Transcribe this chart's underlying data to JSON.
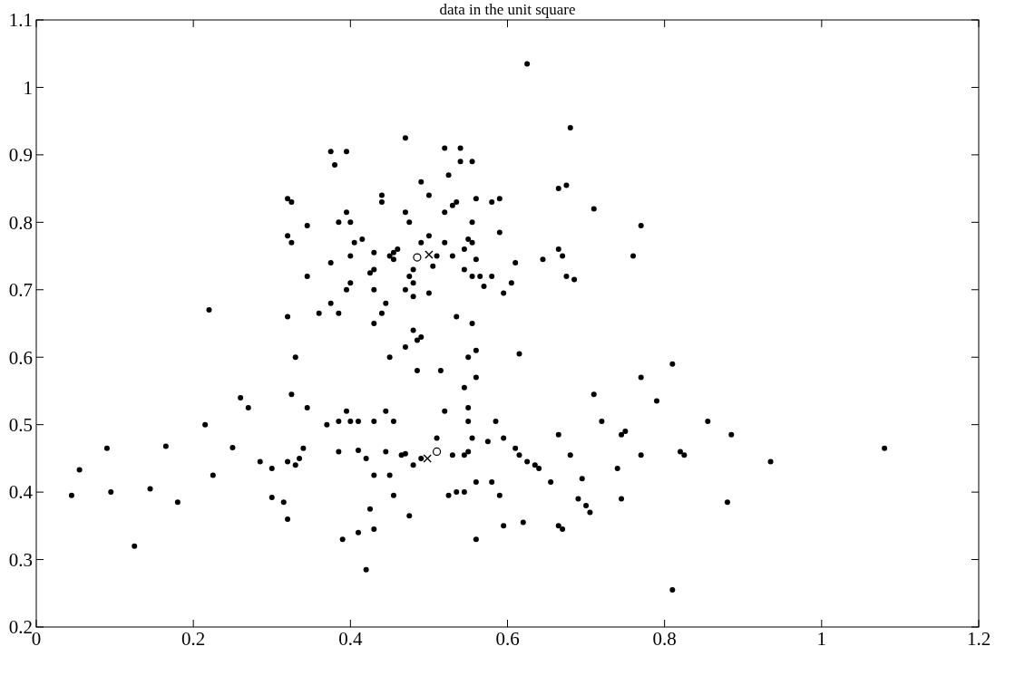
{
  "chart_data": {
    "type": "scatter",
    "title": "data in the unit square",
    "xlim": [
      0,
      1.2
    ],
    "ylim": [
      0.2,
      1.1
    ],
    "xticks": [
      0,
      0.2,
      0.4,
      0.6,
      0.8,
      1,
      1.2
    ],
    "yticks": [
      0.2,
      0.3,
      0.4,
      0.5,
      0.6,
      0.7,
      0.8,
      0.9,
      1,
      1.1
    ],
    "grid": false,
    "series": [
      {
        "color": "#000000",
        "marker": "circle",
        "x": [
          0.625,
          0.68,
          0.47,
          0.52,
          0.54,
          0.375,
          0.395,
          0.38,
          0.54,
          0.555,
          0.49,
          0.525,
          0.665,
          0.675,
          0.32,
          0.325,
          0.44,
          0.44,
          0.5,
          0.535,
          0.53,
          0.56,
          0.58,
          0.59,
          0.71,
          0.395,
          0.47,
          0.52,
          0.385,
          0.4,
          0.475,
          0.555,
          0.345,
          0.77,
          0.32,
          0.325,
          0.405,
          0.415,
          0.5,
          0.49,
          0.52,
          0.55,
          0.555,
          0.59,
          0.545,
          0.375,
          0.4,
          0.43,
          0.45,
          0.455,
          0.46,
          0.455,
          0.51,
          0.505,
          0.53,
          0.56,
          0.61,
          0.665,
          0.67,
          0.645,
          0.76,
          0.345,
          0.425,
          0.43,
          0.48,
          0.475,
          0.48,
          0.545,
          0.555,
          0.565,
          0.58,
          0.57,
          0.605,
          0.675,
          0.685,
          0.395,
          0.4,
          0.375,
          0.43,
          0.445,
          0.47,
          0.48,
          0.5,
          0.595,
          0.36,
          0.32,
          0.385,
          0.43,
          0.44,
          0.535,
          0.555,
          0.22,
          0.33,
          0.47,
          0.48,
          0.485,
          0.49,
          0.45,
          0.55,
          0.56,
          0.615,
          0.485,
          0.515,
          0.56,
          0.545,
          0.26,
          0.325,
          0.27,
          0.215,
          0.37,
          0.385,
          0.395,
          0.4,
          0.41,
          0.43,
          0.445,
          0.455,
          0.345,
          0.52,
          0.55,
          0.55,
          0.585,
          0.71,
          0.81,
          0.77,
          0.79,
          0.72,
          0.855,
          0.885,
          0.745,
          0.75,
          0.665,
          0.575,
          0.555,
          0.595,
          0.51,
          0.09,
          0.165,
          0.055,
          0.25,
          0.34,
          0.385,
          0.41,
          0.42,
          0.47,
          0.465,
          0.49,
          0.53,
          0.545,
          0.55,
          0.61,
          0.615,
          0.625,
          0.635,
          0.64,
          0.68,
          0.77,
          0.82,
          0.825,
          0.935,
          1.08,
          0.045,
          0.095,
          0.145,
          0.18,
          0.125,
          0.225,
          0.285,
          0.32,
          0.335,
          0.3,
          0.33,
          0.43,
          0.3,
          0.315,
          0.32,
          0.39,
          0.41,
          0.43,
          0.42,
          0.425,
          0.455,
          0.475,
          0.48,
          0.525,
          0.535,
          0.545,
          0.56,
          0.56,
          0.58,
          0.59,
          0.595,
          0.62,
          0.655,
          0.665,
          0.67,
          0.695,
          0.69,
          0.7,
          0.705,
          0.74,
          0.745,
          0.81,
          0.88,
          0.445,
          0.45
        ],
        "values": [
          1.035,
          0.94,
          0.925,
          0.91,
          0.91,
          0.905,
          0.905,
          0.885,
          0.89,
          0.89,
          0.86,
          0.87,
          0.85,
          0.855,
          0.835,
          0.83,
          0.84,
          0.83,
          0.84,
          0.83,
          0.825,
          0.835,
          0.83,
          0.835,
          0.82,
          0.815,
          0.815,
          0.815,
          0.8,
          0.8,
          0.8,
          0.8,
          0.795,
          0.795,
          0.78,
          0.77,
          0.77,
          0.775,
          0.78,
          0.77,
          0.77,
          0.775,
          0.77,
          0.785,
          0.76,
          0.74,
          0.75,
          0.755,
          0.75,
          0.755,
          0.76,
          0.745,
          0.75,
          0.735,
          0.75,
          0.745,
          0.74,
          0.76,
          0.75,
          0.745,
          0.75,
          0.72,
          0.725,
          0.73,
          0.73,
          0.72,
          0.71,
          0.73,
          0.72,
          0.72,
          0.72,
          0.705,
          0.71,
          0.72,
          0.715,
          0.7,
          0.71,
          0.68,
          0.7,
          0.68,
          0.7,
          0.69,
          0.695,
          0.695,
          0.665,
          0.66,
          0.665,
          0.65,
          0.665,
          0.66,
          0.65,
          0.67,
          0.6,
          0.615,
          0.64,
          0.625,
          0.63,
          0.6,
          0.6,
          0.61,
          0.605,
          0.58,
          0.58,
          0.57,
          0.555,
          0.54,
          0.545,
          0.525,
          0.5,
          0.5,
          0.505,
          0.52,
          0.505,
          0.505,
          0.505,
          0.52,
          0.505,
          0.525,
          0.52,
          0.525,
          0.505,
          0.505,
          0.545,
          0.59,
          0.57,
          0.535,
          0.505,
          0.505,
          0.485,
          0.485,
          0.49,
          0.485,
          0.475,
          0.48,
          0.48,
          0.48,
          0.465,
          0.468,
          0.433,
          0.466,
          0.465,
          0.46,
          0.462,
          0.45,
          0.457,
          0.455,
          0.45,
          0.455,
          0.455,
          0.46,
          0.465,
          0.455,
          0.445,
          0.44,
          0.435,
          0.455,
          0.455,
          0.46,
          0.455,
          0.445,
          0.465,
          0.395,
          0.4,
          0.405,
          0.385,
          0.32,
          0.425,
          0.445,
          0.445,
          0.45,
          0.435,
          0.44,
          0.425,
          0.392,
          0.385,
          0.36,
          0.33,
          0.34,
          0.345,
          0.285,
          0.375,
          0.395,
          0.365,
          0.44,
          0.395,
          0.4,
          0.4,
          0.415,
          0.33,
          0.415,
          0.395,
          0.35,
          0.355,
          0.415,
          0.35,
          0.345,
          0.42,
          0.39,
          0.38,
          0.37,
          0.435,
          0.39,
          0.255,
          0.385,
          0.46,
          0.425
        ]
      },
      {
        "color": "#000000",
        "marker": "circle",
        "x": [
          0.485,
          0.51
        ],
        "values": [
          0.748,
          0.46
        ]
      },
      {
        "color": "#000000",
        "marker": "cross",
        "x": [
          0.5,
          0.498
        ],
        "values": [
          0.752,
          0.45
        ]
      }
    ]
  }
}
